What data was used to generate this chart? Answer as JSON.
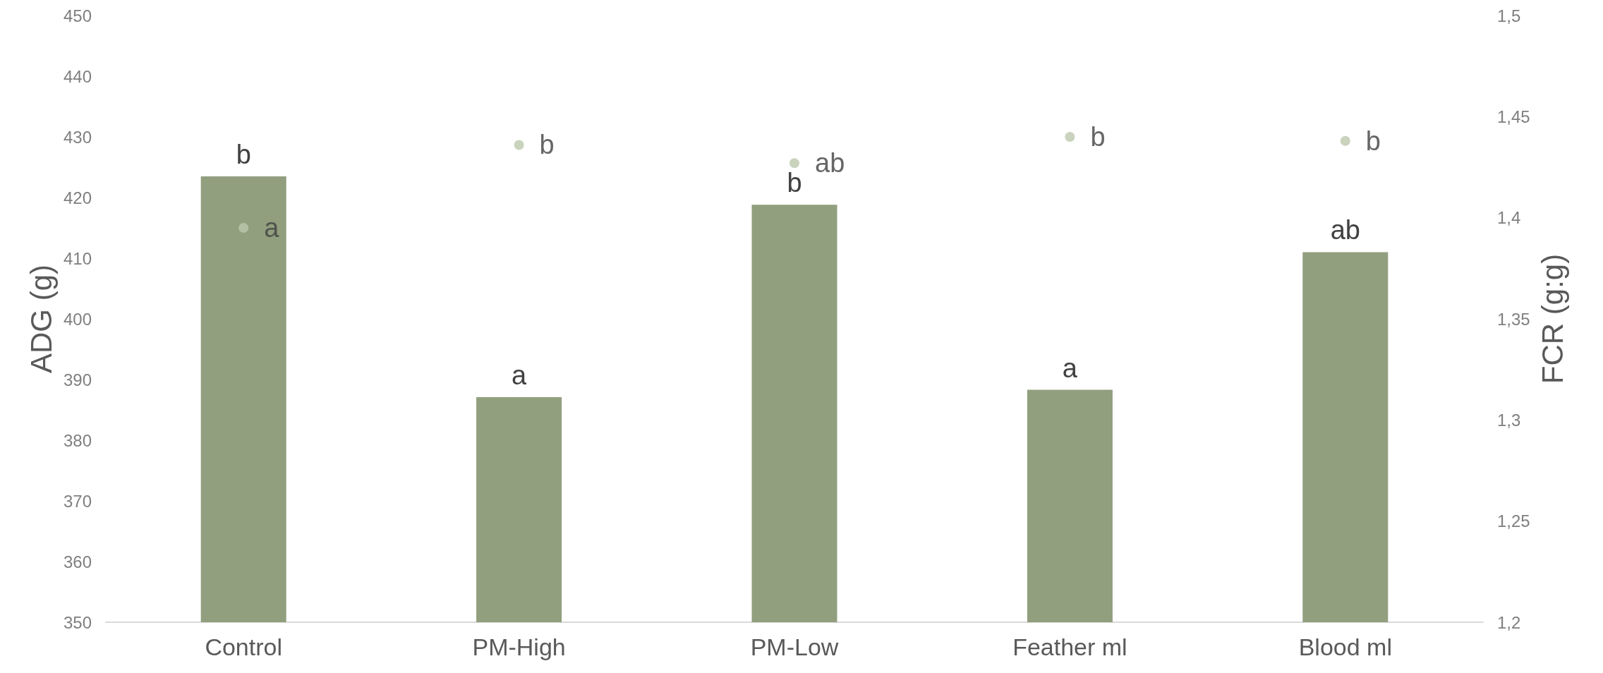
{
  "chart_data": {
    "type": "bar",
    "ylabel": "ADG (g)",
    "y2label": "FCR (g:g)",
    "categories": [
      "Control",
      "PM-High",
      "PM-Low",
      "Feather ml",
      "Blood ml"
    ],
    "series": [
      {
        "color": "#919f7e",
        "values": [
          423.5,
          387.1,
          418.8,
          388.3,
          411.0
        ],
        "value_labels": [
          "b",
          "a",
          "b",
          "a",
          "ab"
        ]
      },
      {
        "type": "scatter",
        "axis": "y2",
        "color": "#bcc8ac",
        "values": [
          1.395,
          1.436,
          1.427,
          1.44,
          1.438
        ],
        "value_labels": [
          "a",
          "b",
          "ab",
          "b",
          "b"
        ]
      }
    ],
    "ylim": [
      350,
      450
    ],
    "yticks": [
      350,
      360,
      370,
      380,
      390,
      400,
      410,
      420,
      430,
      440,
      450
    ],
    "y2lim": [
      1.2,
      1.5
    ],
    "y2ticks": [
      {
        "value": 1.2,
        "label": "1,2"
      },
      {
        "value": 1.25,
        "label": "1,25"
      },
      {
        "value": 1.3,
        "label": "1,3"
      },
      {
        "value": 1.35,
        "label": "1,35"
      },
      {
        "value": 1.4,
        "label": "1,4"
      },
      {
        "value": 1.45,
        "label": "1,45"
      },
      {
        "value": 1.5,
        "label": "1,5"
      }
    ],
    "grid": false,
    "marker": "circle"
  }
}
